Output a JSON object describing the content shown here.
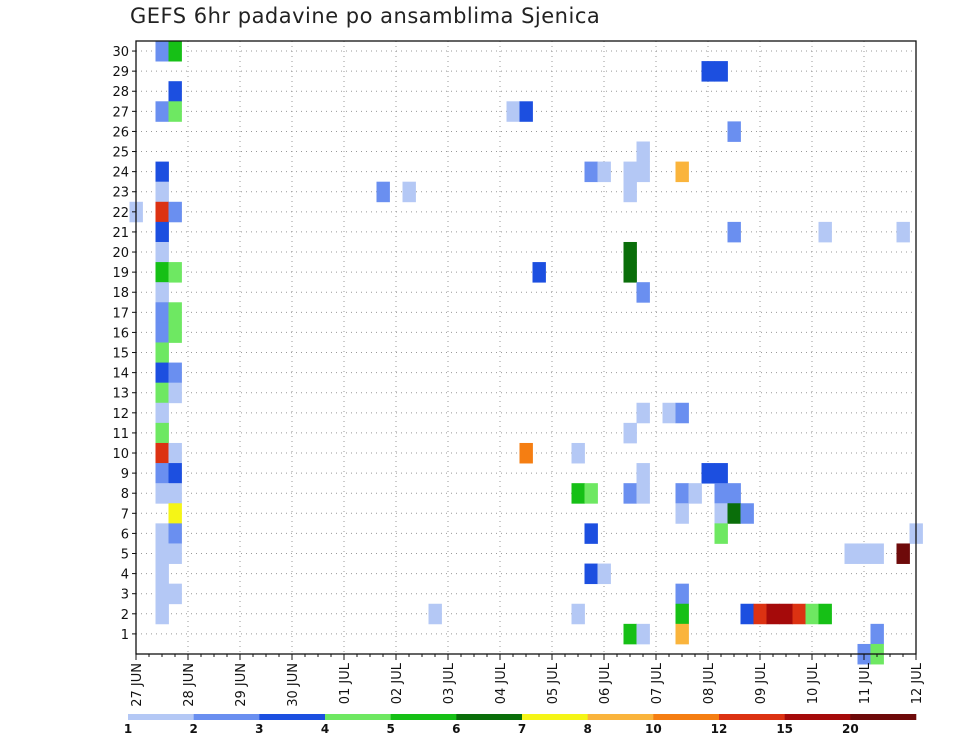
{
  "chart_data": {
    "type": "heatmap",
    "title": "GEFS 6hr padavine po ansamblima Sjenica",
    "x_tick_labels": [
      "27 JUN",
      "28 JUN",
      "29 JUN",
      "30 JUN",
      "01 JUL",
      "02 JUL",
      "03 JUL",
      "04 JUL",
      "05 JUL",
      "06 JUL",
      "07 JUL",
      "08 JUL",
      "09 JUL",
      "10 JUL",
      "11 JUL",
      "12 JUL"
    ],
    "y_tick_labels": [
      "1",
      "2",
      "3",
      "4",
      "5",
      "6",
      "7",
      "8",
      "9",
      "10",
      "11",
      "12",
      "13",
      "14",
      "15",
      "16",
      "17",
      "18",
      "19",
      "20",
      "21",
      "22",
      "23",
      "24",
      "25",
      "26",
      "27",
      "28",
      "29",
      "30"
    ],
    "x_range_steps": [
      0,
      60
    ],
    "y_range": [
      0,
      30
    ],
    "grid": true,
    "colorbar": {
      "labels": [
        "1",
        "2",
        "3",
        "4",
        "5",
        "6",
        "7",
        "8",
        "10",
        "12",
        "15",
        "20"
      ],
      "colors": [
        "#b4c8f5",
        "#6a8ff0",
        "#1c4fe0",
        "#6ee862",
        "#16c016",
        "#0a6e0a",
        "#f5f516",
        "#fab43c",
        "#f57e12",
        "#dc3212",
        "#a50a0a",
        "#6e0a0a"
      ]
    },
    "cells": [
      [
        2,
        30,
        1
      ],
      [
        3,
        30,
        4
      ],
      [
        44,
        29,
        2
      ],
      [
        45,
        29,
        2
      ],
      [
        3,
        28,
        2
      ],
      [
        2,
        27,
        1
      ],
      [
        3,
        27,
        3
      ],
      [
        29,
        27,
        0
      ],
      [
        30,
        27,
        2
      ],
      [
        46,
        26,
        1
      ],
      [
        39,
        25,
        0
      ],
      [
        2,
        24,
        2
      ],
      [
        35,
        24,
        1
      ],
      [
        36,
        24,
        0
      ],
      [
        38,
        24,
        0
      ],
      [
        39,
        24,
        0
      ],
      [
        42,
        24,
        7
      ],
      [
        2,
        23,
        0
      ],
      [
        19,
        23,
        1
      ],
      [
        21,
        23,
        0
      ],
      [
        38,
        23,
        0
      ],
      [
        0,
        22,
        0
      ],
      [
        2,
        22,
        9
      ],
      [
        3,
        22,
        1
      ],
      [
        2,
        21,
        2
      ],
      [
        46,
        21,
        1
      ],
      [
        53,
        21,
        0
      ],
      [
        59,
        21,
        0
      ],
      [
        2,
        20,
        0
      ],
      [
        38,
        20,
        5
      ],
      [
        2,
        19,
        4
      ],
      [
        3,
        19,
        3
      ],
      [
        31,
        19,
        2
      ],
      [
        38,
        19,
        5
      ],
      [
        2,
        18,
        0
      ],
      [
        39,
        18,
        1
      ],
      [
        2,
        17,
        1
      ],
      [
        3,
        17,
        3
      ],
      [
        2,
        16,
        1
      ],
      [
        3,
        16,
        3
      ],
      [
        2,
        15,
        3
      ],
      [
        2,
        14,
        2
      ],
      [
        3,
        14,
        1
      ],
      [
        2,
        13,
        3
      ],
      [
        3,
        13,
        0
      ],
      [
        2,
        12,
        0
      ],
      [
        39,
        12,
        0
      ],
      [
        41,
        12,
        0
      ],
      [
        42,
        12,
        1
      ],
      [
        2,
        11,
        3
      ],
      [
        38,
        11,
        0
      ],
      [
        2,
        10,
        9
      ],
      [
        3,
        10,
        0
      ],
      [
        30,
        10,
        8
      ],
      [
        34,
        10,
        0
      ],
      [
        2,
        9,
        1
      ],
      [
        3,
        9,
        2
      ],
      [
        39,
        9,
        0
      ],
      [
        44,
        9,
        2
      ],
      [
        45,
        9,
        2
      ],
      [
        2,
        8,
        0
      ],
      [
        3,
        8,
        0
      ],
      [
        34,
        8,
        4
      ],
      [
        35,
        8,
        3
      ],
      [
        38,
        8,
        1
      ],
      [
        39,
        8,
        0
      ],
      [
        42,
        8,
        1
      ],
      [
        43,
        8,
        0
      ],
      [
        45,
        8,
        1
      ],
      [
        46,
        8,
        1
      ],
      [
        3,
        7,
        6
      ],
      [
        42,
        7,
        0
      ],
      [
        45,
        7,
        0
      ],
      [
        46,
        7,
        5
      ],
      [
        47,
        7,
        1
      ],
      [
        2,
        6,
        0
      ],
      [
        3,
        6,
        1
      ],
      [
        35,
        6,
        2
      ],
      [
        45,
        6,
        3
      ],
      [
        60,
        6,
        0
      ],
      [
        2,
        5,
        0
      ],
      [
        3,
        5,
        0
      ],
      [
        55,
        5,
        0
      ],
      [
        56,
        5,
        0
      ],
      [
        57,
        5,
        0
      ],
      [
        59,
        5,
        11
      ],
      [
        2,
        4,
        0
      ],
      [
        35,
        4,
        2
      ],
      [
        36,
        4,
        0
      ],
      [
        2,
        3,
        0
      ],
      [
        3,
        3,
        0
      ],
      [
        42,
        3,
        1
      ],
      [
        2,
        2,
        0
      ],
      [
        23,
        2,
        0
      ],
      [
        34,
        2,
        0
      ],
      [
        42,
        2,
        4
      ],
      [
        47,
        2,
        2
      ],
      [
        48,
        2,
        9
      ],
      [
        49,
        2,
        10
      ],
      [
        50,
        2,
        10
      ],
      [
        51,
        2,
        9
      ],
      [
        52,
        2,
        3
      ],
      [
        53,
        2,
        4
      ],
      [
        38,
        1,
        4
      ],
      [
        39,
        1,
        0
      ],
      [
        42,
        1,
        7
      ],
      [
        57,
        1,
        1
      ],
      [
        56,
        0,
        1
      ],
      [
        57,
        0,
        3
      ]
    ]
  }
}
